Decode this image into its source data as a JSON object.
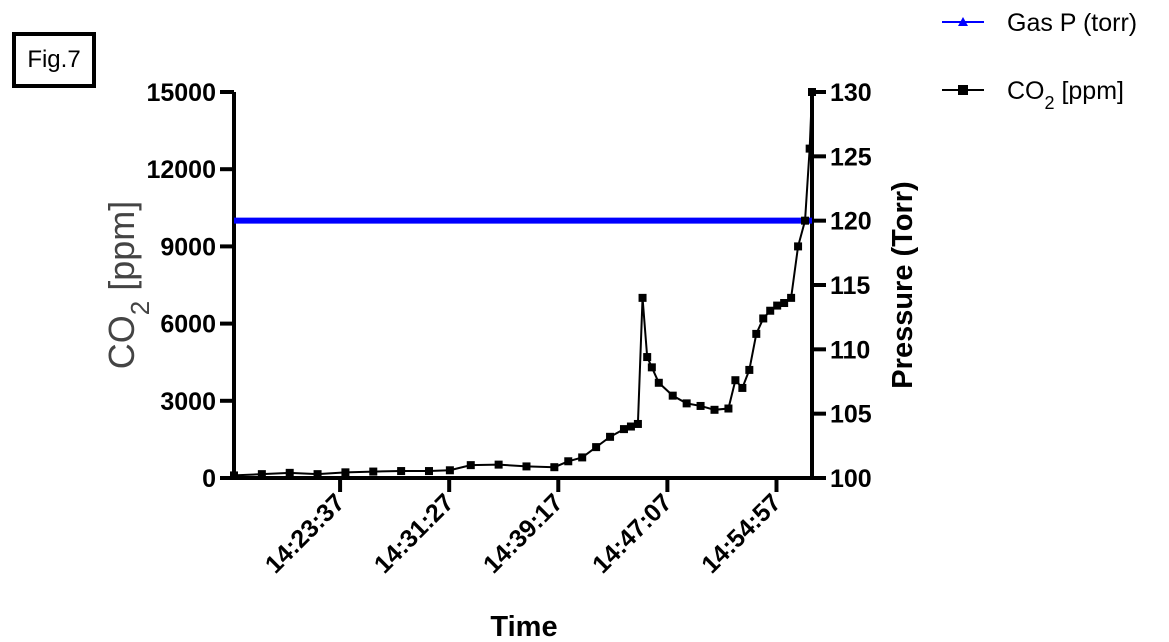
{
  "figure_label": "Fig.7",
  "colors": {
    "pressure": "#0000ff",
    "co2": "#000000"
  },
  "legend": [
    {
      "key": "pressure",
      "label": "Gas P (torr)",
      "marker": "triangle"
    },
    {
      "key": "co2",
      "label_main": "CO",
      "label_sub": "2",
      "label_rest": " [ppm]",
      "marker": "square"
    }
  ],
  "chart_data": {
    "type": "line",
    "xlabel": "Time",
    "ylabel_left": {
      "main": "CO",
      "sub": "2",
      "rest": " [ppm]"
    },
    "ylabel_right": "Pressure (Torr)",
    "x_range": [
      "14:16:00",
      "14:57:30"
    ],
    "x_ticks": [
      "14:23:37",
      "14:31:27",
      "14:39:17",
      "14:47:07",
      "14:54:57"
    ],
    "ylim_left": [
      0,
      15000
    ],
    "yticks_left": [
      0,
      3000,
      6000,
      9000,
      12000,
      15000
    ],
    "ylim_right": [
      100,
      130
    ],
    "yticks_right": [
      100,
      105,
      110,
      115,
      120,
      125,
      130
    ],
    "grid": false,
    "legend_position": "top-right",
    "series": [
      {
        "name": "Gas P (torr)",
        "axis": "right",
        "x": [
          "14:16:00",
          "14:57:30"
        ],
        "values": [
          120,
          120
        ]
      },
      {
        "name": "CO2 [ppm]",
        "axis": "left",
        "x": [
          "14:16:00",
          "14:18:00",
          "14:20:00",
          "14:22:00",
          "14:24:00",
          "14:26:00",
          "14:28:00",
          "14:30:00",
          "14:31:30",
          "14:33:00",
          "14:35:00",
          "14:37:00",
          "14:39:00",
          "14:40:00",
          "14:41:00",
          "14:42:00",
          "14:43:00",
          "14:44:00",
          "14:44:30",
          "14:45:00",
          "14:45:20",
          "14:45:40",
          "14:46:00",
          "14:46:30",
          "14:47:30",
          "14:48:30",
          "14:49:30",
          "14:50:30",
          "14:51:30",
          "14:52:00",
          "14:52:30",
          "14:53:00",
          "14:53:30",
          "14:54:00",
          "14:54:30",
          "14:55:00",
          "14:55:30",
          "14:56:00",
          "14:56:30",
          "14:57:00",
          "14:57:20",
          "14:57:30"
        ],
        "values": [
          100,
          150,
          200,
          150,
          220,
          250,
          270,
          270,
          300,
          500,
          520,
          450,
          420,
          650,
          800,
          1200,
          1600,
          1900,
          2000,
          2100,
          7000,
          4700,
          4300,
          3700,
          3200,
          2900,
          2800,
          2650,
          2700,
          3800,
          3500,
          4200,
          5600,
          6200,
          6500,
          6700,
          6800,
          7000,
          9000,
          10000,
          12800,
          15000
        ]
      }
    ]
  }
}
